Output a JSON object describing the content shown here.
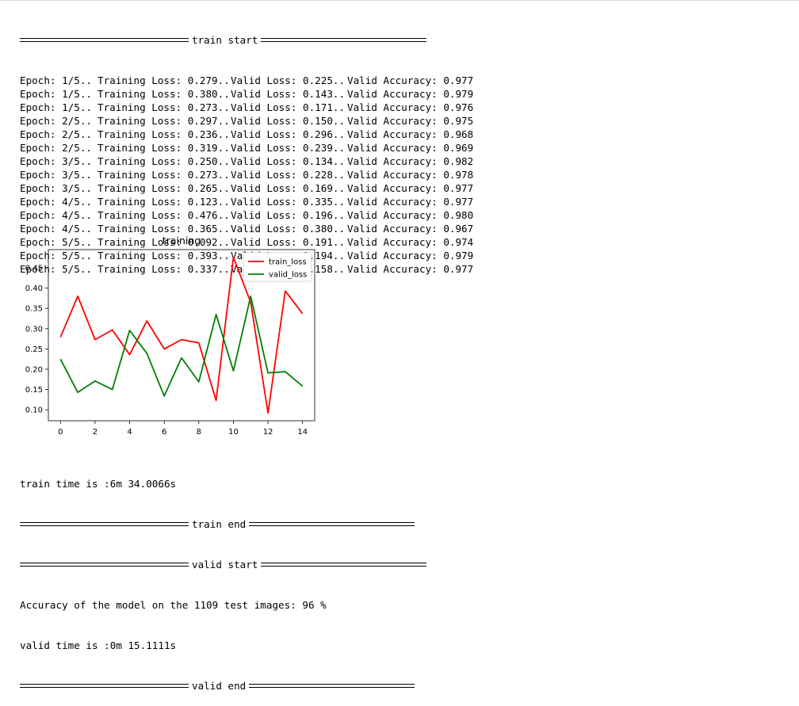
{
  "log": {
    "train_start": "train start",
    "rows": [
      {
        "epoch": "Epoch: 1/5..",
        "train_loss": "Training Loss: 0.279..",
        "valid_loss": "Valid Loss: 0.225..",
        "valid_acc": "Valid Accuracy: 0.977"
      },
      {
        "epoch": "Epoch: 1/5..",
        "train_loss": "Training Loss: 0.380..",
        "valid_loss": "Valid Loss: 0.143..",
        "valid_acc": "Valid Accuracy: 0.979"
      },
      {
        "epoch": "Epoch: 1/5..",
        "train_loss": "Training Loss: 0.273..",
        "valid_loss": "Valid Loss: 0.171..",
        "valid_acc": "Valid Accuracy: 0.976"
      },
      {
        "epoch": "Epoch: 2/5..",
        "train_loss": "Training Loss: 0.297..",
        "valid_loss": "Valid Loss: 0.150..",
        "valid_acc": "Valid Accuracy: 0.975"
      },
      {
        "epoch": "Epoch: 2/5..",
        "train_loss": "Training Loss: 0.236..",
        "valid_loss": "Valid Loss: 0.296..",
        "valid_acc": "Valid Accuracy: 0.968"
      },
      {
        "epoch": "Epoch: 2/5..",
        "train_loss": "Training Loss: 0.319..",
        "valid_loss": "Valid Loss: 0.239..",
        "valid_acc": "Valid Accuracy: 0.969"
      },
      {
        "epoch": "Epoch: 3/5..",
        "train_loss": "Training Loss: 0.250..",
        "valid_loss": "Valid Loss: 0.134..",
        "valid_acc": "Valid Accuracy: 0.982"
      },
      {
        "epoch": "Epoch: 3/5..",
        "train_loss": "Training Loss: 0.273..",
        "valid_loss": "Valid Loss: 0.228..",
        "valid_acc": "Valid Accuracy: 0.978"
      },
      {
        "epoch": "Epoch: 3/5..",
        "train_loss": "Training Loss: 0.265..",
        "valid_loss": "Valid Loss: 0.169..",
        "valid_acc": "Valid Accuracy: 0.977"
      },
      {
        "epoch": "Epoch: 4/5..",
        "train_loss": "Training Loss: 0.123..",
        "valid_loss": "Valid Loss: 0.335..",
        "valid_acc": "Valid Accuracy: 0.977"
      },
      {
        "epoch": "Epoch: 4/5..",
        "train_loss": "Training Loss: 0.476..",
        "valid_loss": "Valid Loss: 0.196..",
        "valid_acc": "Valid Accuracy: 0.980"
      },
      {
        "epoch": "Epoch: 4/5..",
        "train_loss": "Training Loss: 0.365..",
        "valid_loss": "Valid Loss: 0.380..",
        "valid_acc": "Valid Accuracy: 0.967"
      },
      {
        "epoch": "Epoch: 5/5..",
        "train_loss": "Training Loss: 0.092..",
        "valid_loss": "Valid Loss: 0.191..",
        "valid_acc": "Valid Accuracy: 0.974"
      },
      {
        "epoch": "Epoch: 5/5..",
        "train_loss": "Training Loss: 0.393..",
        "valid_loss": "Valid Loss: 0.194..",
        "valid_acc": "Valid Accuracy: 0.979"
      },
      {
        "epoch": "Epoch: 5/5..",
        "train_loss": "Training Loss: 0.337..",
        "valid_loss": "Valid Loss: 0.158..",
        "valid_acc": "Valid Accuracy: 0.977"
      }
    ],
    "train_time": "train time is :6m 34.0066s",
    "train_end": "train end",
    "valid_start": "valid start",
    "accuracy_line": "Accuracy of the model on the 1109 test images: 96 %",
    "valid_time": "valid time is :0m 15.1111s",
    "valid_end": "valid end"
  },
  "chart_data": {
    "type": "line",
    "title": "training",
    "xlabel": "",
    "ylabel": "",
    "xlim": [
      -0.7,
      14.7
    ],
    "ylim": [
      0.073,
      0.495
    ],
    "xticks": [
      0,
      2,
      4,
      6,
      8,
      10,
      12,
      14
    ],
    "yticks": [
      0.1,
      0.15,
      0.2,
      0.25,
      0.3,
      0.35,
      0.4,
      0.45
    ],
    "ytick_labels": [
      "0.10",
      "0.15",
      "0.20",
      "0.25",
      "0.30",
      "0.35",
      "0.40",
      "0.45"
    ],
    "grid": false,
    "legend": "top-right",
    "x": [
      0,
      1,
      2,
      3,
      4,
      5,
      6,
      7,
      8,
      9,
      10,
      11,
      12,
      13,
      14
    ],
    "series": [
      {
        "name": "train_loss",
        "color": "#ff0000",
        "values": [
          0.279,
          0.38,
          0.273,
          0.297,
          0.236,
          0.319,
          0.25,
          0.273,
          0.265,
          0.123,
          0.476,
          0.365,
          0.092,
          0.393,
          0.337
        ]
      },
      {
        "name": "valid_loss",
        "color": "#008000",
        "values": [
          0.225,
          0.143,
          0.171,
          0.15,
          0.296,
          0.239,
          0.134,
          0.228,
          0.169,
          0.335,
          0.196,
          0.38,
          0.191,
          0.194,
          0.158
        ]
      }
    ]
  }
}
